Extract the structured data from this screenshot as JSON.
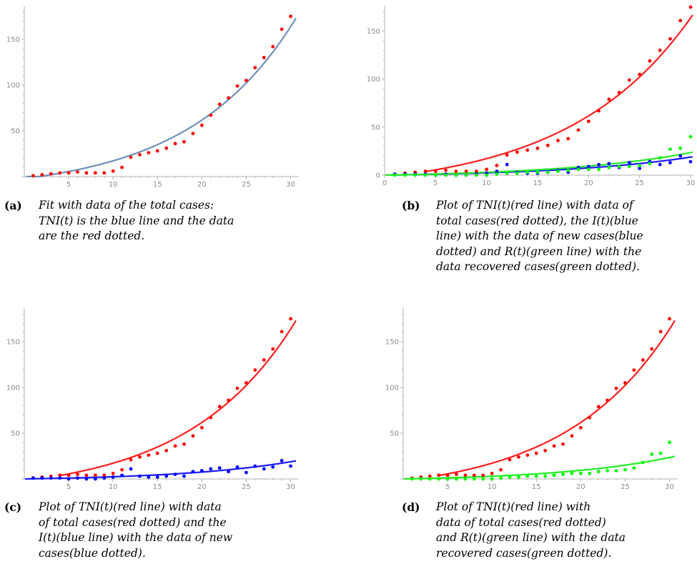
{
  "figure": {
    "panels": [
      {
        "id": "a",
        "label": "(a)",
        "caption_lines": [
          "Fit with data of the total cases:",
          "TNI(t) is the blue line and the data",
          "are the red dotted."
        ]
      },
      {
        "id": "b",
        "label": "(b)",
        "caption_lines": [
          "Plot of TNI(t)(red line) with data of",
          "total cases(red dotted), the I(t)(blue",
          "line) with the data of new cases(blue",
          "dotted) and R(t)(green line) with the",
          "data recovered cases(green dotted)."
        ]
      },
      {
        "id": "c",
        "label": "(c)",
        "caption_lines": [
          "Plot of TNI(t)(red line) with data",
          "of total cases(red dotted) and the",
          "I(t)(blue line) with the data of new",
          "cases(blue dotted)."
        ]
      },
      {
        "id": "d",
        "label": "(d)",
        "caption_lines": [
          "Plot of TNI(t)(red line) with",
          "data of total cases(red dotted)",
          "and R(t)(green line) with the data",
          "recovered cases(green dotted)."
        ]
      }
    ]
  },
  "chart_data": [
    {
      "type": "scatter",
      "panel": "a",
      "x_ticks": [
        5,
        10,
        15,
        20,
        25,
        30
      ],
      "y_ticks": [
        50,
        100,
        150
      ],
      "xlim": [
        0,
        30.6
      ],
      "ylim": [
        0,
        182
      ],
      "colors": {
        "total": "#ff0000",
        "tni": "#6f8fb8"
      },
      "series": [
        {
          "kind": "points",
          "color_key": "total",
          "x": [
            1,
            2,
            3,
            4,
            5,
            6,
            7,
            8,
            9,
            10,
            11,
            12,
            13,
            14,
            15,
            16,
            17,
            18,
            19,
            20,
            21,
            22,
            23,
            24,
            25,
            26,
            27,
            28,
            29,
            30
          ],
          "y": [
            1,
            2,
            3,
            4,
            4,
            5,
            4,
            4,
            4,
            6,
            10,
            21,
            24,
            26,
            28,
            31,
            36,
            38,
            47,
            56,
            67,
            79,
            86,
            99,
            105,
            119,
            130,
            142,
            161,
            175
          ]
        },
        {
          "kind": "curve",
          "color_key": "tni",
          "formula": "exp",
          "a": 15.0,
          "b": 0.083,
          "c": -17.2,
          "xstart": 0.2,
          "xend": 30.6
        }
      ]
    },
    {
      "type": "scatter",
      "panel": "b",
      "x_ticks": [
        0,
        5,
        10,
        15,
        20,
        25,
        30
      ],
      "y_ticks": [
        0,
        50,
        100,
        150
      ],
      "xlim": [
        0,
        30
      ],
      "ylim": [
        0,
        172
      ],
      "colors": {
        "total": "#ff0000",
        "new": "#0000ff",
        "recovered": "#00ff00",
        "tni": "#ff2020",
        "i": "#1a1aff",
        "r": "#22ee22"
      },
      "series": [
        {
          "kind": "points",
          "color_key": "total",
          "x": [
            1,
            2,
            3,
            4,
            5,
            6,
            7,
            8,
            9,
            10,
            11,
            12,
            13,
            14,
            15,
            16,
            17,
            18,
            19,
            20,
            21,
            22,
            23,
            24,
            25,
            26,
            27,
            28,
            29,
            30
          ],
          "y": [
            1,
            2,
            3,
            4,
            4,
            5,
            4,
            4,
            4,
            6,
            10,
            21,
            24,
            26,
            28,
            31,
            36,
            38,
            47,
            56,
            67,
            79,
            86,
            99,
            105,
            119,
            130,
            142,
            161,
            175
          ]
        },
        {
          "kind": "points",
          "color_key": "new",
          "x": [
            1,
            2,
            3,
            4,
            5,
            6,
            7,
            8,
            9,
            10,
            11,
            12,
            13,
            14,
            15,
            16,
            17,
            18,
            19,
            20,
            21,
            22,
            23,
            24,
            25,
            26,
            27,
            28,
            29,
            30
          ],
          "y": [
            1,
            1,
            1,
            1,
            0,
            1,
            0,
            0,
            1,
            2,
            4,
            11,
            3,
            2,
            2,
            3,
            5,
            3,
            8,
            9,
            11,
            12,
            8,
            13,
            7,
            14,
            11,
            13,
            20,
            14
          ]
        },
        {
          "kind": "points",
          "color_key": "recovered",
          "x": [
            1,
            2,
            3,
            4,
            5,
            6,
            7,
            8,
            9,
            10,
            11,
            12,
            13,
            14,
            15,
            16,
            17,
            18,
            19,
            20,
            21,
            22,
            23,
            24,
            25,
            26,
            27,
            28,
            29,
            30
          ],
          "y": [
            0,
            0,
            0,
            0,
            0,
            0,
            0,
            0,
            0,
            0,
            1,
            2,
            2,
            3,
            3,
            3,
            4,
            5,
            6,
            6,
            6,
            8,
            9,
            9,
            10,
            12,
            18,
            27,
            28,
            40
          ]
        },
        {
          "kind": "curve",
          "color_key": "tni",
          "formula": "exp",
          "a": 15.0,
          "b": 0.083,
          "c": -17.2,
          "xstart": 4.0,
          "xend": 30.2
        },
        {
          "kind": "curve",
          "color_key": "i",
          "formula": "exp",
          "a": 2.0,
          "b": 0.078,
          "c": -2.0,
          "xstart": 0,
          "xend": 30.2
        },
        {
          "kind": "curve",
          "color_key": "r",
          "formula": "exp",
          "a": 2.5,
          "b": 0.078,
          "c": -2.5,
          "xstart": 0,
          "xend": 30.2
        }
      ]
    },
    {
      "type": "scatter",
      "panel": "c",
      "x_ticks": [
        5,
        10,
        15,
        20,
        25,
        30
      ],
      "y_ticks": [
        50,
        100,
        150
      ],
      "xlim": [
        0,
        30.6
      ],
      "ylim": [
        0,
        182
      ],
      "colors": {
        "total": "#ff0000",
        "new": "#0000ff",
        "tni": "#ff2020",
        "i": "#1a1aff"
      },
      "series": [
        {
          "kind": "points",
          "color_key": "total",
          "x": [
            1,
            2,
            3,
            4,
            5,
            6,
            7,
            8,
            9,
            10,
            11,
            12,
            13,
            14,
            15,
            16,
            17,
            18,
            19,
            20,
            21,
            22,
            23,
            24,
            25,
            26,
            27,
            28,
            29,
            30
          ],
          "y": [
            1,
            2,
            3,
            4,
            4,
            5,
            4,
            4,
            4,
            6,
            10,
            21,
            24,
            26,
            28,
            31,
            36,
            38,
            47,
            56,
            67,
            79,
            86,
            99,
            105,
            119,
            130,
            142,
            161,
            175
          ]
        },
        {
          "kind": "points",
          "color_key": "new",
          "x": [
            1,
            2,
            3,
            4,
            5,
            6,
            7,
            8,
            9,
            10,
            11,
            12,
            13,
            14,
            15,
            16,
            17,
            18,
            19,
            20,
            21,
            22,
            23,
            24,
            25,
            26,
            27,
            28,
            29,
            30
          ],
          "y": [
            1,
            1,
            1,
            1,
            0,
            1,
            0,
            0,
            1,
            2,
            4,
            11,
            3,
            2,
            2,
            3,
            5,
            3,
            8,
            9,
            11,
            12,
            8,
            13,
            7,
            14,
            11,
            13,
            20,
            14
          ]
        },
        {
          "kind": "curve",
          "color_key": "tni",
          "formula": "exp",
          "a": 15.0,
          "b": 0.083,
          "c": -17.2,
          "xstart": 4.0,
          "xend": 30.6
        },
        {
          "kind": "curve",
          "color_key": "i",
          "formula": "exp",
          "a": 2.0,
          "b": 0.078,
          "c": -2.0,
          "xstart": 0,
          "xend": 30.6
        }
      ]
    },
    {
      "type": "scatter",
      "panel": "d",
      "x_ticks": [
        5,
        10,
        15,
        20,
        25,
        30
      ],
      "y_ticks": [
        50,
        100,
        150
      ],
      "xlim": [
        0,
        30.6
      ],
      "ylim": [
        0,
        182
      ],
      "colors": {
        "total": "#ff0000",
        "recovered": "#00ff00",
        "tni": "#ff2020",
        "r": "#22ee22"
      },
      "series": [
        {
          "kind": "points",
          "color_key": "total",
          "x": [
            1,
            2,
            3,
            4,
            5,
            6,
            7,
            8,
            9,
            10,
            11,
            12,
            13,
            14,
            15,
            16,
            17,
            18,
            19,
            20,
            21,
            22,
            23,
            24,
            25,
            26,
            27,
            28,
            29,
            30
          ],
          "y": [
            1,
            2,
            3,
            4,
            4,
            5,
            4,
            4,
            4,
            6,
            10,
            21,
            24,
            26,
            28,
            31,
            36,
            38,
            47,
            56,
            67,
            79,
            86,
            99,
            105,
            119,
            130,
            142,
            161,
            175
          ]
        },
        {
          "kind": "points",
          "color_key": "recovered",
          "x": [
            1,
            2,
            3,
            4,
            5,
            6,
            7,
            8,
            9,
            10,
            11,
            12,
            13,
            14,
            15,
            16,
            17,
            18,
            19,
            20,
            21,
            22,
            23,
            24,
            25,
            26,
            27,
            28,
            29,
            30
          ],
          "y": [
            0,
            0,
            0,
            0,
            0,
            0,
            0,
            0,
            0,
            0,
            1,
            2,
            2,
            3,
            3,
            3,
            4,
            5,
            6,
            6,
            6,
            8,
            9,
            9,
            10,
            12,
            18,
            27,
            28,
            40
          ]
        },
        {
          "kind": "curve",
          "color_key": "tni",
          "formula": "exp",
          "a": 15.0,
          "b": 0.083,
          "c": -17.2,
          "xstart": 4.0,
          "xend": 30.6
        },
        {
          "kind": "curve",
          "color_key": "r",
          "formula": "exp",
          "a": 2.5,
          "b": 0.078,
          "c": -2.5,
          "xstart": 0,
          "xend": 30.6
        }
      ]
    }
  ]
}
